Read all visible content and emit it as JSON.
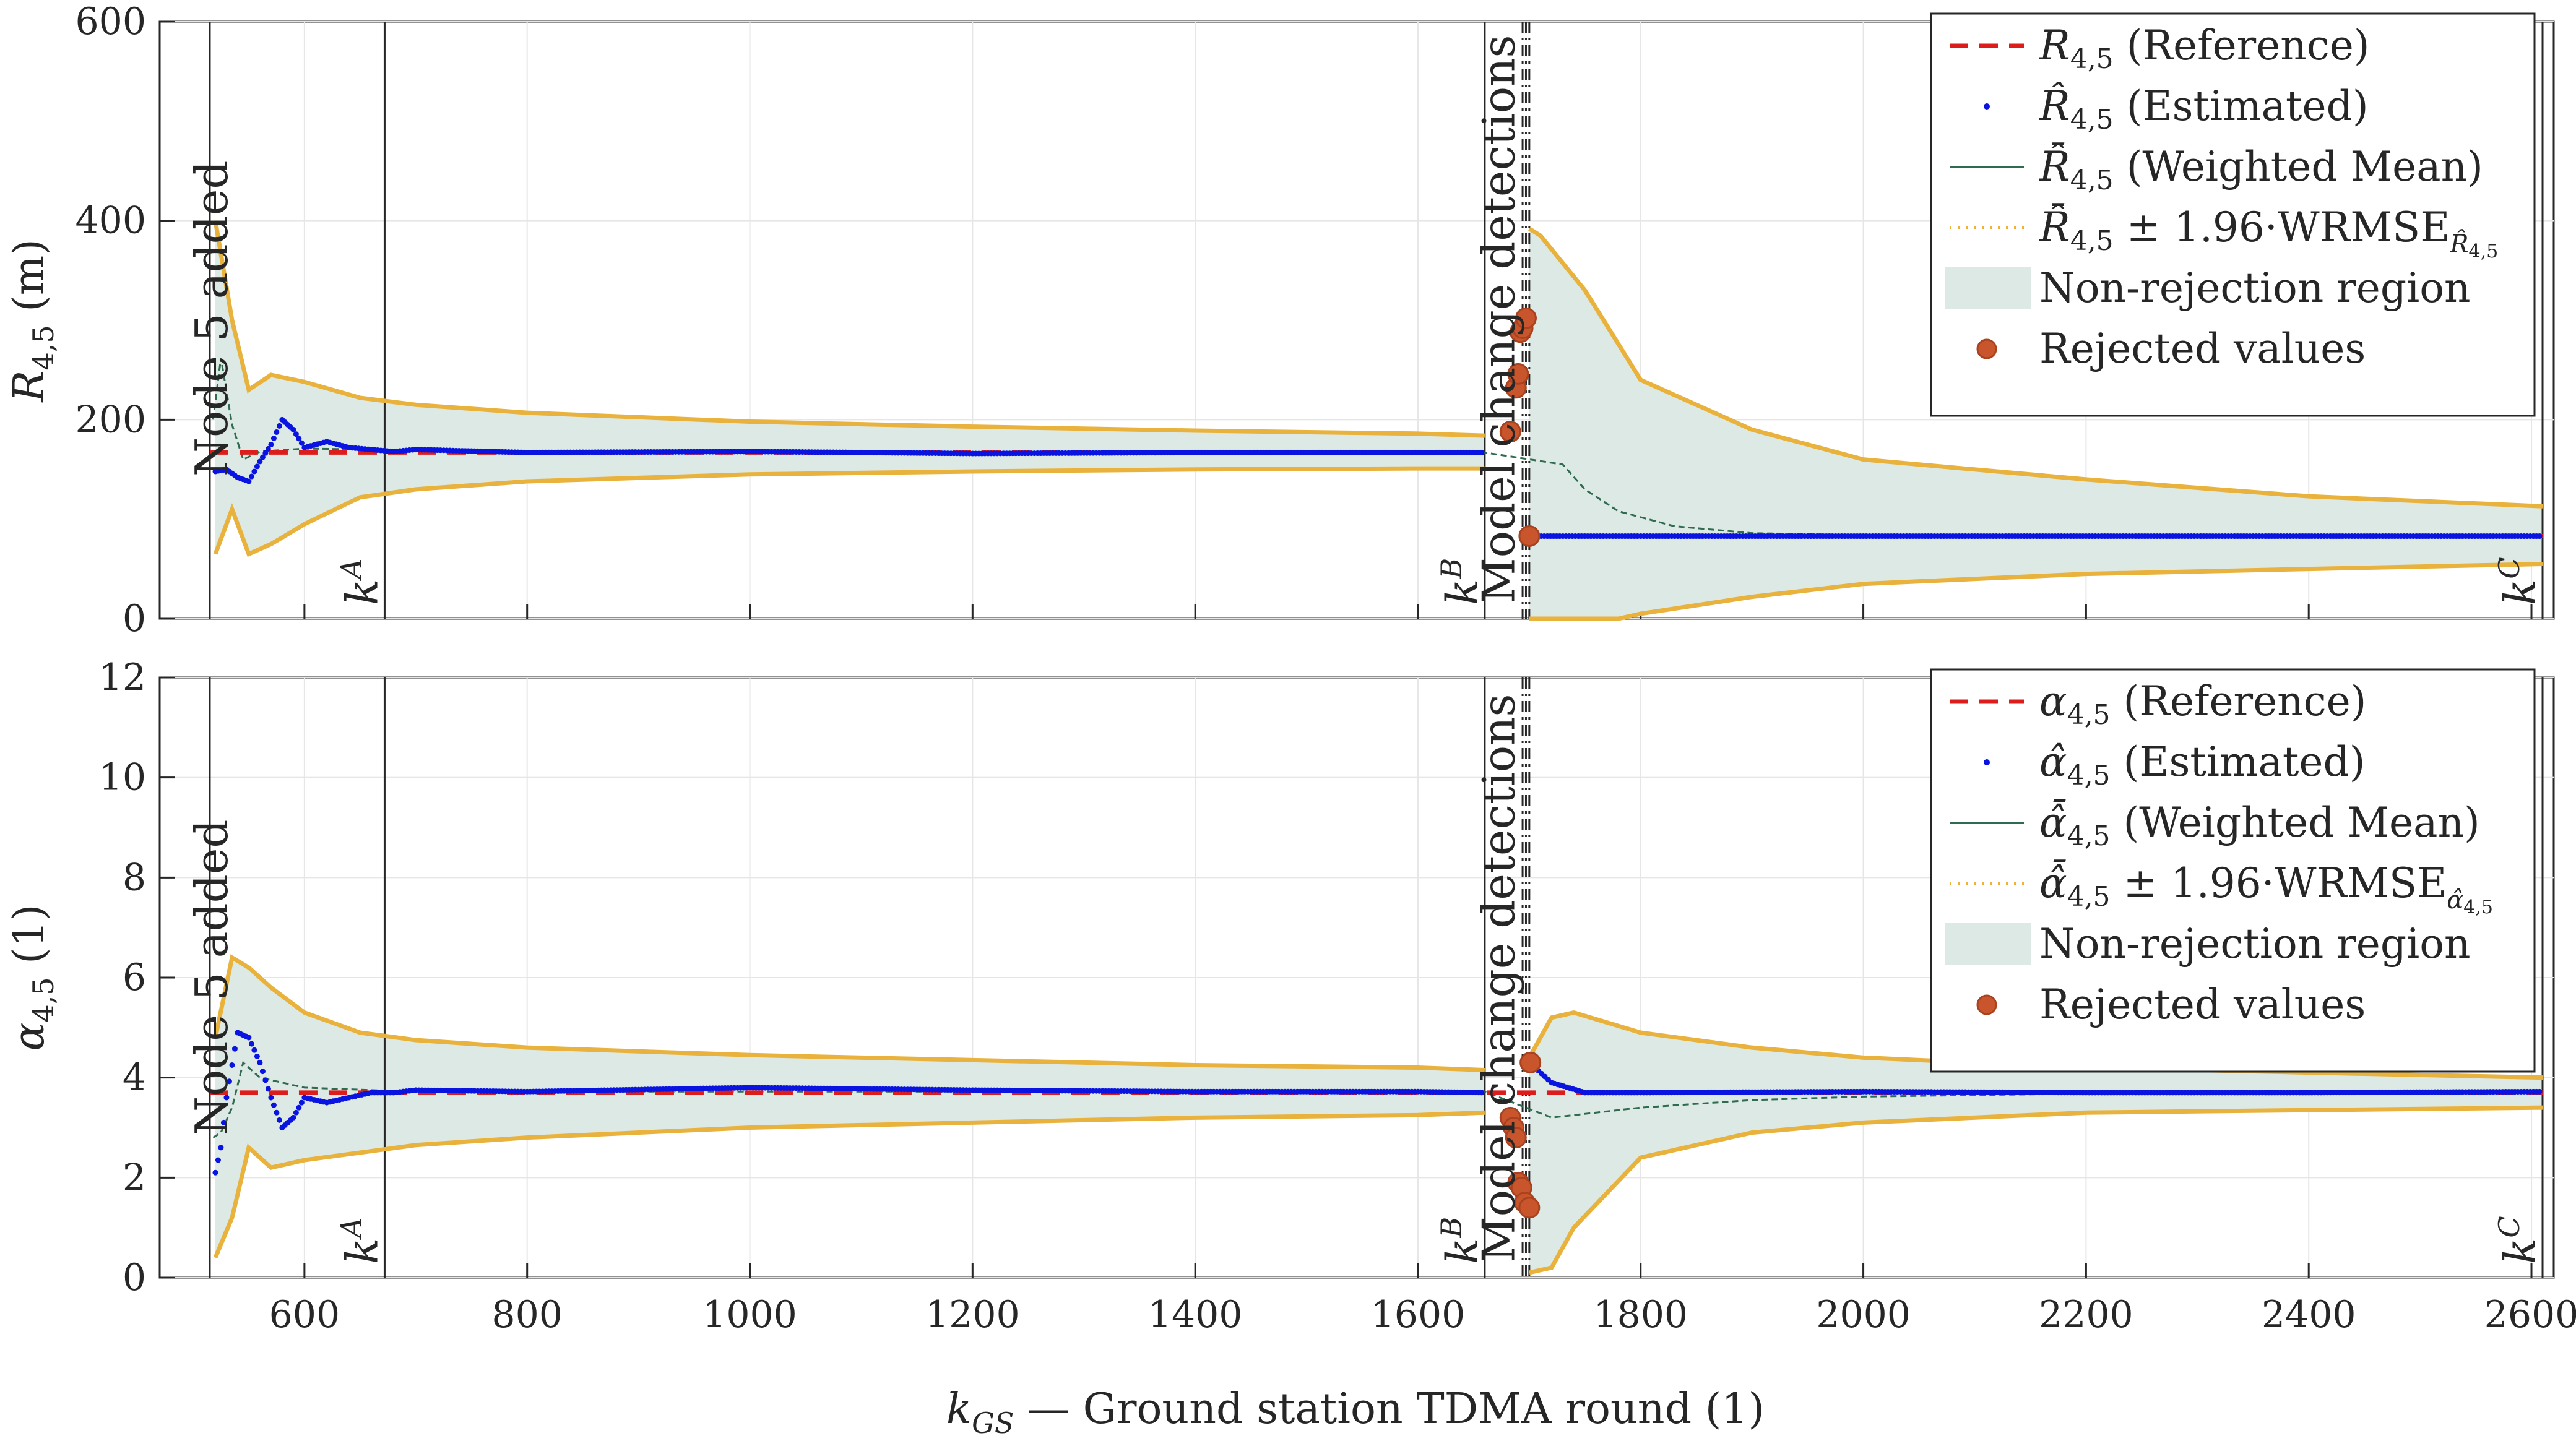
{
  "chart_data": {
    "type": "line",
    "xlabel": "k_GS — Ground station TDMA round (1)",
    "xlim": [
      470,
      2620
    ],
    "x_ticks": [
      600,
      800,
      1000,
      1200,
      1400,
      1600,
      1800,
      2000,
      2200,
      2400,
      2600
    ],
    "x_tick_labels": [
      "600",
      "800",
      "1000",
      "1200",
      "1400",
      "1600",
      "1800",
      "2000",
      "2200",
      "2400",
      "2600"
    ],
    "grid": true,
    "vertical_markers": [
      {
        "label": "Node 5 added",
        "x": 515
      },
      {
        "label": "kA",
        "x": 672
      },
      {
        "label": "kB",
        "x": 1660
      },
      {
        "label": "Model change detections",
        "x": [
          1694,
          1700
        ]
      },
      {
        "label": "kC",
        "x": 2610
      }
    ],
    "panels": [
      {
        "ylabel": "R4,5 (m)",
        "ylim": [
          0,
          600
        ],
        "y_ticks": [
          0,
          200,
          400,
          600
        ],
        "y_tick_labels": [
          "0",
          "200",
          "400",
          "600"
        ],
        "legend_position": "top-right",
        "legend": [
          {
            "type": "dashed-line",
            "color": "#dd1c1c",
            "label": "R4,5 (Reference)"
          },
          {
            "type": "point",
            "color": "#0a14e0",
            "label": "R̂4,5 (Estimated)"
          },
          {
            "type": "line",
            "color": "#2f6b4f",
            "label": "R̂̄4,5 (Weighted Mean)"
          },
          {
            "type": "dotted-line",
            "color": "#e8b23c",
            "label": "R̂̄4,5 ± 1.96·WRMSE"
          },
          {
            "type": "patch",
            "color": "#dde9e5",
            "label": "Non-rejection region"
          },
          {
            "type": "marker",
            "color": "#c8552b",
            "label": "Rejected values"
          }
        ],
        "series": [
          {
            "name": "Reference",
            "segments": [
              {
                "x": [
                  515,
                  1660
                ],
                "y": [
                  167,
                  167
                ]
              },
              {
                "x": [
                  1700,
                  2610
                ],
                "y": [
                  83,
                  83
                ]
              }
            ]
          },
          {
            "name": "Estimated (approx.)",
            "x": [
              520,
              530,
              540,
              550,
              560,
              570,
              580,
              590,
              600,
              620,
              640,
              660,
              680,
              700,
              800,
              1000,
              1200,
              1400,
              1600,
              1660,
              1705,
              1800,
              2000,
              2200,
              2400,
              2610
            ],
            "y": [
              148,
              150,
              142,
              138,
              158,
              175,
              200,
              190,
              172,
              178,
              172,
              170,
              168,
              170,
              167,
              168,
              166,
              167,
              167,
              167,
              83,
              83,
              83,
              83,
              83,
              83
            ]
          },
          {
            "name": "Weighted Mean (approx.)",
            "x": [
              518,
              525,
              535,
              545,
              560,
              600,
              660,
              700,
              800,
              1000,
              1200,
              1400,
              1600,
              1660,
              1730,
              1750,
              1780,
              1830,
              1900,
              2000,
              2200,
              2400,
              2610
            ],
            "y": [
              200,
              262,
              195,
              160,
              168,
              171,
              170,
              169,
              168,
              168,
              167,
              167,
              167,
              167,
              155,
              130,
              108,
              93,
              86,
              84,
              83,
              83,
              83
            ]
          },
          {
            "name": "Upper bound (approx.)",
            "x": [
              520,
              535,
              550,
              570,
              600,
              650,
              700,
              800,
              1000,
              1200,
              1400,
              1600,
              1660,
              1700,
              1710,
              1750,
              1800,
              1900,
              2000,
              2200,
              2400,
              2610
            ],
            "y": [
              400,
              300,
              230,
              245,
              238,
              222,
              215,
              207,
              198,
              193,
              189,
              186,
              184,
              392,
              385,
              330,
              240,
              190,
              160,
              140,
              123,
              113
            ]
          },
          {
            "name": "Lower bound (approx.)",
            "x": [
              520,
              535,
              550,
              570,
              600,
              650,
              700,
              800,
              1000,
              1200,
              1400,
              1600,
              1660,
              1700,
              1740,
              1780,
              1800,
              1900,
              2000,
              2200,
              2400,
              2610
            ],
            "y": [
              65,
              110,
              65,
              75,
              95,
              122,
              130,
              138,
              145,
              148,
              150,
              151,
              151,
              0,
              0,
              0,
              5,
              22,
              35,
              45,
              50,
              55
            ]
          }
        ],
        "rejected_values": {
          "x": [
            1683,
            1688,
            1690,
            1692,
            1694,
            1697,
            1700
          ],
          "y": [
            188,
            232,
            246,
            288,
            292,
            302,
            83
          ]
        }
      },
      {
        "ylabel": "α4,5 (1)",
        "ylim": [
          0,
          12
        ],
        "y_ticks": [
          0,
          2,
          4,
          6,
          8,
          10,
          12
        ],
        "y_tick_labels": [
          "0",
          "2",
          "4",
          "6",
          "8",
          "10",
          "12"
        ],
        "legend_position": "top-right",
        "legend": [
          {
            "type": "dashed-line",
            "color": "#dd1c1c",
            "label": "α4,5 (Reference)"
          },
          {
            "type": "point",
            "color": "#0a14e0",
            "label": "α̂4,5 (Estimated)"
          },
          {
            "type": "line",
            "color": "#2f6b4f",
            "label": "α̂̄4,5 (Weighted Mean)"
          },
          {
            "type": "dotted-line",
            "color": "#e8b23c",
            "label": "α̂̄4,5 ± 1.96·WRMSE"
          },
          {
            "type": "patch",
            "color": "#dde9e5",
            "label": "Non-rejection region"
          },
          {
            "type": "marker",
            "color": "#c8552b",
            "label": "Rejected values"
          }
        ],
        "series": [
          {
            "name": "Reference",
            "x": [
              515,
              2610
            ],
            "y": [
              3.7,
              3.7
            ]
          },
          {
            "name": "Estimated (approx.)",
            "x": [
              520,
              525,
              530,
              540,
              550,
              560,
              570,
              580,
              590,
              600,
              620,
              640,
              660,
              680,
              700,
              800,
              1000,
              1200,
              1400,
              1600,
              1660,
              1705,
              1720,
              1750,
              1800,
              2000,
              2200,
              2400,
              2610
            ],
            "y": [
              2.1,
              2.6,
              3.6,
              4.9,
              4.8,
              4.3,
              3.6,
              3.0,
              3.2,
              3.6,
              3.5,
              3.6,
              3.7,
              3.7,
              3.75,
              3.72,
              3.8,
              3.75,
              3.72,
              3.72,
              3.7,
              4.2,
              3.9,
              3.7,
              3.7,
              3.72,
              3.7,
              3.7,
              3.72
            ]
          },
          {
            "name": "Weighted Mean (approx.)",
            "x": [
              518,
              525,
              535,
              545,
              560,
              600,
              660,
              700,
              800,
              1000,
              1200,
              1400,
              1600,
              1660,
              1720,
              1760,
              1800,
              1900,
              2000,
              2200,
              2400,
              2610
            ],
            "y": [
              2.8,
              2.9,
              3.4,
              4.3,
              4.0,
              3.8,
              3.75,
              3.72,
              3.72,
              3.72,
              3.72,
              3.72,
              3.72,
              3.72,
              3.2,
              3.3,
              3.4,
              3.55,
              3.62,
              3.68,
              3.7,
              3.7
            ]
          },
          {
            "name": "Upper bound (approx.)",
            "x": [
              520,
              535,
              550,
              570,
              600,
              650,
              700,
              800,
              1000,
              1200,
              1400,
              1600,
              1660,
              1700,
              1720,
              1740,
              1800,
              1900,
              2000,
              2200,
              2400,
              2610
            ],
            "y": [
              4.8,
              6.4,
              6.2,
              5.8,
              5.3,
              4.9,
              4.75,
              4.6,
              4.45,
              4.35,
              4.25,
              4.2,
              4.15,
              4.4,
              5.2,
              5.3,
              4.9,
              4.6,
              4.4,
              4.2,
              4.1,
              4.0
            ]
          },
          {
            "name": "Lower bound (approx.)",
            "x": [
              520,
              535,
              550,
              570,
              600,
              650,
              700,
              800,
              1000,
              1200,
              1400,
              1600,
              1660,
              1700,
              1720,
              1740,
              1800,
              1900,
              2000,
              2200,
              2400,
              2610
            ],
            "y": [
              0.4,
              1.2,
              2.6,
              2.2,
              2.35,
              2.5,
              2.65,
              2.8,
              3.0,
              3.1,
              3.2,
              3.25,
              3.3,
              0.1,
              0.2,
              1.0,
              2.4,
              2.9,
              3.1,
              3.3,
              3.35,
              3.4
            ]
          }
        ],
        "rejected_values": {
          "x": [
            1683,
            1686,
            1688,
            1690,
            1693,
            1696,
            1700,
            1701
          ],
          "y": [
            3.2,
            3.0,
            2.8,
            1.9,
            1.8,
            1.5,
            1.4,
            4.3
          ]
        }
      }
    ]
  },
  "colors": {
    "reference": "#dd1c1c",
    "estimated": "#0a14e0",
    "weighted_mean": "#2f6b4f",
    "bounds": "#e8b23c",
    "region": "#dde9e5",
    "rejected": "#c8552b"
  }
}
